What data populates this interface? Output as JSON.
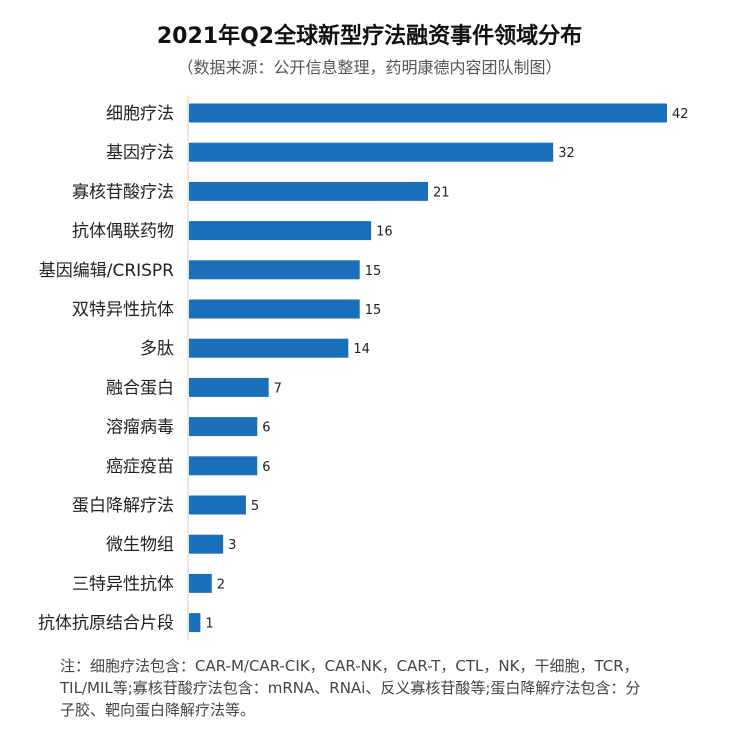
{
  "title": "2021年Q2全球新型疗法融资事件领域分布",
  "subtitle": "（数据来源：公开信息整理，药明康德内容团队制图）",
  "note": "注：细胞疗法包含：CAR-M/CAR-CIK，CAR-NK，CAR-T，CTL，NK，干细胞，TCR，TIL/MIL等;寡核苷酸疗法包含：mRNA、RNAi、反义寡核苷酸等;蛋白降解疗法包含：分子胶、靶向蛋白降解疗法等。",
  "colors": {
    "bar": "#1a6fbb",
    "axis": "#cfcfcf"
  },
  "chart_data": {
    "type": "bar",
    "orientation": "horizontal",
    "title": "2021年Q2全球新型疗法融资事件领域分布",
    "xlabel": "",
    "ylabel": "",
    "xlim": [
      0,
      42
    ],
    "grid": false,
    "legend": "none",
    "categories": [
      "细胞疗法",
      "基因疗法",
      "寡核苷酸疗法",
      "抗体偶联药物",
      "基因编辑/CRISPR",
      "双特异性抗体",
      "多肽",
      "融合蛋白",
      "溶瘤病毒",
      "癌症疫苗",
      "蛋白降解疗法",
      "微生物组",
      "三特异性抗体",
      "抗体抗原结合片段"
    ],
    "values": [
      42,
      32,
      21,
      16,
      15,
      15,
      14,
      7,
      6,
      6,
      5,
      3,
      2,
      1
    ]
  }
}
